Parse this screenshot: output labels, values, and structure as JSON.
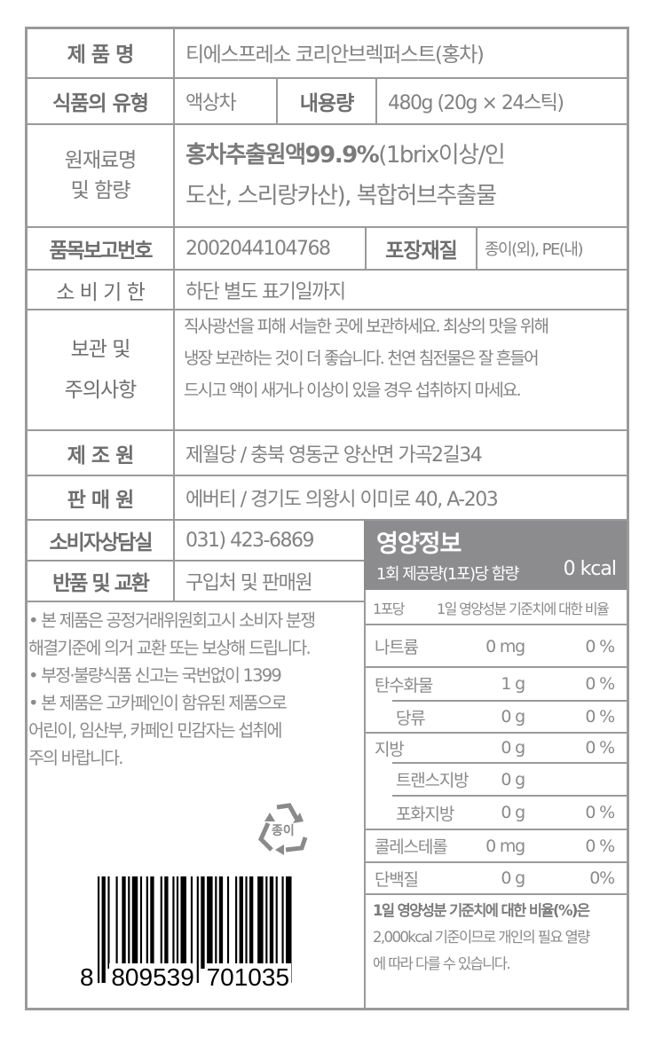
{
  "product": {
    "name_label": "제 품 명",
    "name": "티에스프레소 코리안브렉퍼스트(홍차)",
    "type_label": "식품의 유형",
    "type": "액상차",
    "volume_label": "내용량",
    "volume": "480g (20g × 24스틱)",
    "ingredients_label": [
      "원재료명",
      "및 함량"
    ],
    "ingredients_bold": "홍차추출원액99.9%",
    "ingredients_line1_rest": "(1brix이상/인",
    "ingredients_line2": "도산, 스리랑카산), 복합허브추출물",
    "report_label": "품목보고번호",
    "report": "2002044104768",
    "packaging_label": "포장재질",
    "packaging": "종이(외), PE(내)",
    "expiry_label": "소 비 기 한",
    "expiry": "하단 별도 표기일까지",
    "storage_label": [
      "보관 및",
      "주의사항"
    ],
    "storage": [
      "직사광선을 피해 서늘한 곳에 보관하세요. 최상의 맛을 위해",
      "냉장 보관하는 것이 더 좋습니다. 천연 침전물은 잘 흔들어",
      "드시고 액이 새거나 이상이 있을 경우 섭취하지 마세요."
    ],
    "maker_label": "제 조 원",
    "maker": "제월당 / 충북 영동군 양산면 가곡2길34",
    "seller_label": "판 매 원",
    "seller": "에버티 / 경기도 의왕시 이미로 40, A-203",
    "contact_label": "소비자상담실",
    "contact": "031) 423-6869",
    "return_label": "반품 및 교환",
    "return": "구입처 및 판매원"
  },
  "notes": [
    "• 본 제품은 공정거래위원회고시 소비자 분쟁",
    "해결기준에 의거 교환 또는 보상해 드립니다.",
    "• 부정·불량식품 신고는 국번없이 1399",
    "• 본 제품은 고카페인이 함유된 제품으로",
    "어린이, 임산부, 카페인 민감자는 섭취에",
    "주의 바랍니다."
  ],
  "recycle": {
    "label": "종이",
    "icon": "recycle-icon"
  },
  "barcode": {
    "digits": [
      "8",
      "809539",
      "701035"
    ]
  },
  "nutrition": {
    "title": "영양정보",
    "serving": "1회 제공량(1포)당 함량",
    "kcal": "0 kcal",
    "col_per": "1포당",
    "col_dv": "1일 영양성분 기준치에 대한 비율",
    "rows": [
      {
        "name": "나트륨",
        "amount": "0 mg",
        "dv": "0 %"
      },
      {
        "name": "탄수화물",
        "amount": "1 g",
        "dv": "0 %"
      },
      {
        "name": "당류",
        "amount": "0 g",
        "dv": "0 %"
      },
      {
        "name": "지방",
        "amount": "0 g",
        "dv": "0 %"
      },
      {
        "name": "트랜스지방",
        "amount": "0 g",
        "dv": ""
      },
      {
        "name": "포화지방",
        "amount": "0 g",
        "dv": "0 %"
      },
      {
        "name": "콜레스테롤",
        "amount": "0 mg",
        "dv": "0 %"
      },
      {
        "name": "단백질",
        "amount": "0 g",
        "dv": "0%"
      }
    ],
    "footnote_bold": "1일 영양성분 기준치에 대한 비율(%)은",
    "footnote": [
      "2,000kcal 기준이므로 개인의 필요 열량",
      "에 따라 다를 수 있습니다."
    ]
  },
  "colors": {
    "text": "#828282",
    "border": "#9a9a9a",
    "header_bg": "#8c8c8e"
  }
}
